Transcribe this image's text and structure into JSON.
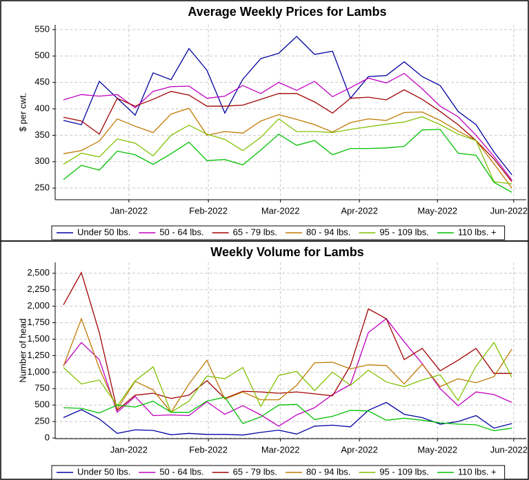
{
  "chart_data": [
    {
      "type": "line",
      "title": "Average Weekly Prices for Lambs",
      "y_label": "$ per cwt.",
      "ylim": [
        228,
        559
      ],
      "yticks": [
        250,
        300,
        350,
        400,
        450,
        500,
        550
      ],
      "xlim": [
        -0.46,
        25.8
      ],
      "xticks": [
        {
          "value": 3.65,
          "label": "Jan-2022"
        },
        {
          "value": 8.08,
          "label": "Feb-2022"
        },
        {
          "value": 12.1,
          "label": "Mar-2022"
        },
        {
          "value": 16.5,
          "label": "Apr-2022"
        },
        {
          "value": 20.85,
          "label": "May-2022"
        },
        {
          "value": 25.1,
          "label": "Jun-2022"
        }
      ],
      "grid": true,
      "legend": "bottom",
      "series": [
        {
          "name": "Under 50 lbs.",
          "color": "#0000a0",
          "values": [
            378,
            370,
            452,
            420,
            388,
            468,
            455,
            514,
            473,
            392,
            456,
            495,
            505,
            537,
            503,
            509,
            420,
            461,
            463,
            489,
            461,
            444,
            395,
            370,
            318,
            275
          ]
        },
        {
          "name": "50 - 64 lbs.",
          "color": "#c000c0",
          "values": [
            417,
            427,
            424,
            427,
            402,
            433,
            442,
            443,
            420,
            424,
            444,
            429,
            450,
            435,
            452,
            423,
            440,
            458,
            449,
            467,
            438,
            405,
            385,
            350,
            310,
            265
          ]
        },
        {
          "name": "65 - 79 lbs.",
          "color": "#a00000",
          "values": [
            384,
            377,
            352,
            420,
            405,
            418,
            433,
            426,
            405,
            405,
            407,
            418,
            429,
            429,
            413,
            392,
            420,
            422,
            417,
            436,
            418,
            395,
            370,
            340,
            305,
            262
          ]
        },
        {
          "name": "80 - 94 lbs.",
          "color": "#c07800",
          "values": [
            315,
            321,
            339,
            381,
            367,
            355,
            390,
            401,
            350,
            357,
            354,
            377,
            389,
            380,
            370,
            356,
            374,
            381,
            378,
            393,
            394,
            378,
            358,
            340,
            296,
            250
          ]
        },
        {
          "name": "95 - 109 lbs.",
          "color": "#80c000",
          "values": [
            295,
            316,
            309,
            343,
            335,
            311,
            350,
            369,
            352,
            342,
            321,
            346,
            381,
            357,
            357,
            355,
            361,
            366,
            371,
            375,
            385,
            370,
            352,
            340,
            262,
            258
          ]
        },
        {
          "name": "110 lbs. +",
          "color": "#00c000",
          "values": [
            266,
            293,
            284,
            320,
            313,
            295,
            315,
            337,
            302,
            304,
            294,
            322,
            352,
            331,
            340,
            313,
            325,
            325,
            326,
            329,
            360,
            361,
            316,
            312,
            261,
            242
          ]
        }
      ]
    },
    {
      "type": "line",
      "title": "Weekly Volume for Lambs",
      "y_label": "Number of head",
      "ylim": [
        -10,
        2665
      ],
      "yticks": [
        0,
        250,
        500,
        750,
        {
          "value": 1000,
          "label": "1,000"
        },
        {
          "value": 1250,
          "label": "1,250"
        },
        {
          "value": 1500,
          "label": "1,500"
        },
        {
          "value": 1750,
          "label": "1,750"
        },
        {
          "value": 2000,
          "label": "2,000"
        },
        {
          "value": 2250,
          "label": "2,250"
        },
        {
          "value": 2500,
          "label": "2,500"
        }
      ],
      "xlim": [
        -0.46,
        25.8
      ],
      "xticks": [
        {
          "value": 3.65,
          "label": "Jan-2022"
        },
        {
          "value": 8.08,
          "label": "Feb-2022"
        },
        {
          "value": 12.1,
          "label": "Mar-2022"
        },
        {
          "value": 16.5,
          "label": "Apr-2022"
        },
        {
          "value": 20.85,
          "label": "May-2022"
        },
        {
          "value": 25.1,
          "label": "Jun-2022"
        }
      ],
      "grid": true,
      "legend": "bottom",
      "series": [
        {
          "name": "Under 50 lbs.",
          "color": "#0000a0",
          "values": [
            310,
            430,
            290,
            70,
            125,
            115,
            50,
            70,
            55,
            55,
            45,
            85,
            120,
            60,
            180,
            195,
            170,
            420,
            540,
            360,
            310,
            210,
            250,
            340,
            150,
            220
          ]
        },
        {
          "name": "50 - 64 lbs.",
          "color": "#c000c0",
          "values": [
            1100,
            1450,
            1190,
            390,
            630,
            340,
            350,
            340,
            550,
            360,
            490,
            350,
            180,
            350,
            460,
            660,
            810,
            1600,
            1810,
            1460,
            1130,
            750,
            490,
            700,
            660,
            540
          ]
        },
        {
          "name": "65 - 79 lbs.",
          "color": "#a00000",
          "values": [
            2020,
            2510,
            1600,
            420,
            650,
            680,
            600,
            650,
            870,
            600,
            710,
            700,
            680,
            700,
            670,
            640,
            1100,
            1960,
            1810,
            1190,
            1360,
            1020,
            1180,
            1360,
            980,
            980
          ]
        },
        {
          "name": "80 - 94 lbs.",
          "color": "#c07800",
          "values": [
            1090,
            1810,
            1060,
            440,
            860,
            730,
            390,
            820,
            1180,
            590,
            700,
            580,
            580,
            800,
            1140,
            1150,
            1050,
            1110,
            1100,
            820,
            1120,
            780,
            900,
            840,
            930,
            1350
          ]
        },
        {
          "name": "95 - 109 lbs.",
          "color": "#80c000",
          "values": [
            1070,
            820,
            880,
            490,
            870,
            1080,
            390,
            560,
            940,
            900,
            1070,
            480,
            950,
            1010,
            720,
            1000,
            800,
            1030,
            850,
            780,
            880,
            960,
            570,
            1090,
            1450,
            920
          ]
        },
        {
          "name": "110 lbs. +",
          "color": "#00c000",
          "values": [
            460,
            450,
            380,
            500,
            470,
            560,
            390,
            390,
            560,
            620,
            220,
            320,
            500,
            510,
            280,
            330,
            420,
            410,
            270,
            300,
            270,
            230,
            210,
            200,
            110,
            150
          ]
        }
      ]
    }
  ]
}
